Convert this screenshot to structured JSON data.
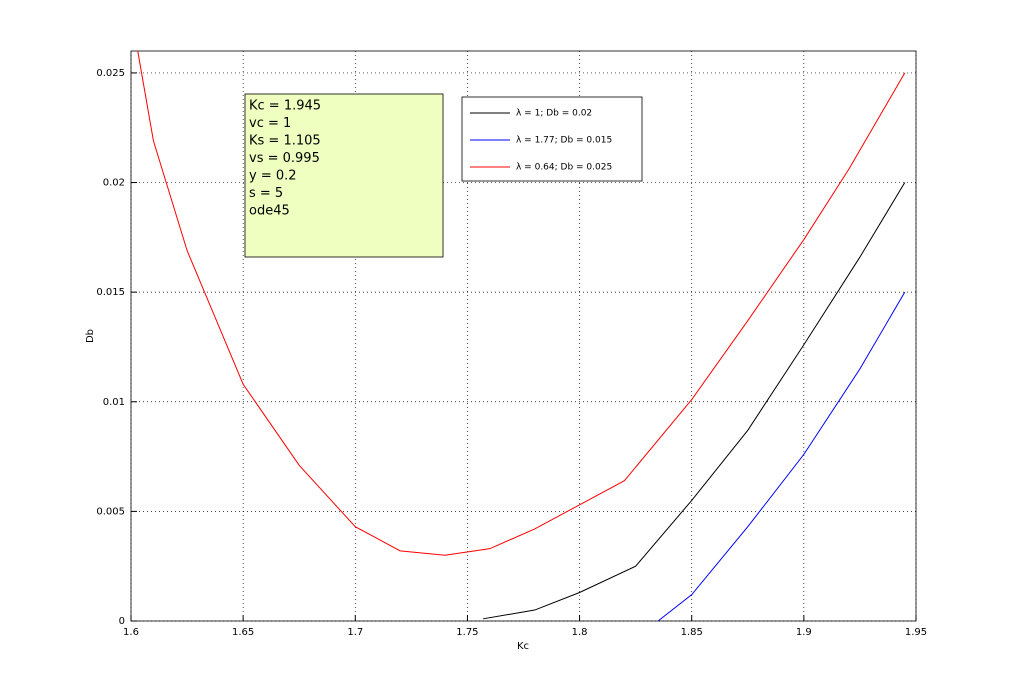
{
  "chart_data": {
    "type": "line",
    "xlabel": "Kc",
    "ylabel": "Db",
    "xlim": [
      1.6,
      1.95
    ],
    "ylim": [
      0,
      0.026
    ],
    "xticks": [
      1.6,
      1.65,
      1.7,
      1.75,
      1.8,
      1.85,
      1.9,
      1.95
    ],
    "yticks": [
      0,
      0.005,
      0.01,
      0.015,
      0.02,
      0.025
    ],
    "grid": true,
    "annotation": [
      "Kc = 1.945",
      "vc = 1",
      "Ks = 1.105",
      "vs = 0.995",
      "y = 0.2",
      "s = 5",
      "ode45"
    ],
    "series": [
      {
        "name": "λ = 1; Db = 0.02",
        "color": "#000000",
        "x": [
          1.757,
          1.78,
          1.8,
          1.825,
          1.85,
          1.875,
          1.9,
          1.925,
          1.945
        ],
        "values": [
          0.0001,
          0.0005,
          0.0013,
          0.0025,
          0.0055,
          0.0087,
          0.0126,
          0.0166,
          0.02
        ]
      },
      {
        "name": "λ = 1.77; Db = 0.015",
        "color": "#0000ff",
        "x": [
          1.835,
          1.85,
          1.875,
          1.9,
          1.925,
          1.945
        ],
        "values": [
          0,
          0.0012,
          0.0043,
          0.0076,
          0.0115,
          0.015
        ]
      },
      {
        "name": "λ = 0.64; Db = 0.025",
        "color": "#ff0000",
        "x": [
          1.603,
          1.61,
          1.625,
          1.65,
          1.675,
          1.7,
          1.72,
          1.74,
          1.76,
          1.78,
          1.8,
          1.82,
          1.85,
          1.875,
          1.9,
          1.92,
          1.945
        ],
        "values": [
          0.026,
          0.0219,
          0.0169,
          0.0108,
          0.0071,
          0.0043,
          0.0032,
          0.003,
          0.0033,
          0.0042,
          0.0053,
          0.0064,
          0.0101,
          0.0137,
          0.0174,
          0.0206,
          0.025
        ]
      }
    ]
  }
}
